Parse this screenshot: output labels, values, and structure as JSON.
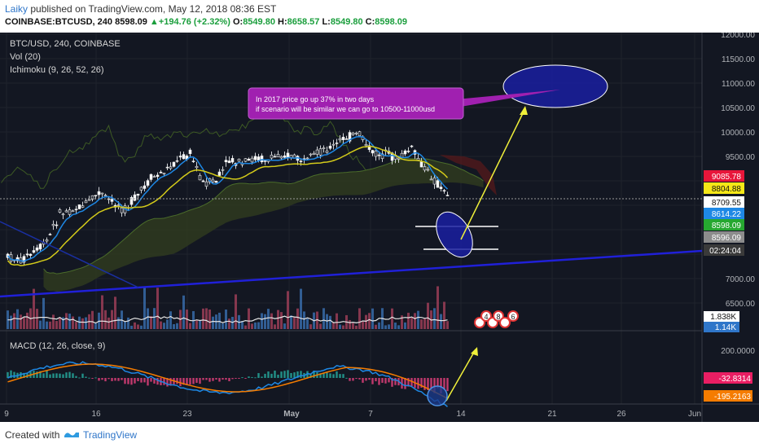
{
  "header": {
    "user": "Laiky",
    "published": "published on TradingView.com, May 12, 2018 08:36 EST",
    "symbol_line": "COINBASE:BTCUSD, 240",
    "last": "8598.09",
    "change_arrow": "▲",
    "change": "+194.76 (+2.32%)",
    "o_label": "O:",
    "o": "8549.80",
    "h_label": "H:",
    "h": "8658.57",
    "l_label": "L:",
    "l": "8549.80",
    "c_label": "C:",
    "c": "8598.09"
  },
  "legend": {
    "title": "BTC/USD, 240, COINBASE",
    "vol": "Vol (20)",
    "ichimoku": "Ichimoku (9, 26, 52, 26)",
    "macd": "MACD (12, 26, close, 9)"
  },
  "annotation": {
    "line1": "In 2017 price go up 37% in two days",
    "line2": "if scenario will be similar we can go to 10500-11000usd"
  },
  "badges": [
    "4",
    "8",
    "6"
  ],
  "footer": {
    "created": "Created with",
    "brand": "TradingView"
  },
  "chart_data": [
    {
      "type": "candlestick",
      "title": "BTC/USD, 240, COINBASE",
      "ylim": [
        6000,
        12000
      ],
      "y_ticks": [
        "12000.00",
        "11500.00",
        "11000.00",
        "10500.00",
        "10000.00",
        "9500.00",
        "7000.00",
        "6500.00"
      ],
      "x_ticks": [
        "9",
        "16",
        "23",
        "May",
        "7",
        "14",
        "21",
        "26",
        "Jun"
      ],
      "price_labels": [
        {
          "value": "9085.78",
          "color": "#e8163a"
        },
        {
          "value": "8804.88",
          "color": "#f6e717"
        },
        {
          "value": "8709.55",
          "color": "#ffffff"
        },
        {
          "value": "8614.22",
          "color": "#1e88e5"
        },
        {
          "value": "8598.09",
          "color": "#26a830"
        },
        {
          "value": "8596.09",
          "color": "#8c8c8c"
        },
        {
          "value": "02:24:04",
          "color": "#3a3a3a"
        }
      ],
      "volume_labels": [
        {
          "value": "1.838K",
          "color": "#ffffff"
        },
        {
          "value": "1.14K",
          "color": "#2f76c9"
        }
      ],
      "path_points": [
        [
          0,
          7220
        ],
        [
          4,
          7150
        ],
        [
          8,
          7300
        ],
        [
          12,
          7550
        ],
        [
          16,
          8150
        ],
        [
          20,
          8250
        ],
        [
          24,
          8350
        ],
        [
          28,
          8600
        ],
        [
          32,
          8400
        ],
        [
          36,
          8250
        ],
        [
          40,
          8550
        ],
        [
          44,
          8900
        ],
        [
          48,
          9050
        ],
        [
          52,
          9300
        ],
        [
          56,
          9450
        ],
        [
          60,
          8800
        ],
        [
          64,
          8850
        ],
        [
          68,
          9300
        ],
        [
          72,
          9200
        ],
        [
          76,
          9350
        ],
        [
          80,
          9300
        ],
        [
          84,
          9450
        ],
        [
          88,
          9350
        ],
        [
          92,
          9250
        ],
        [
          96,
          9500
        ],
        [
          100,
          9600
        ],
        [
          104,
          9800
        ],
        [
          108,
          9850
        ],
        [
          112,
          9450
        ],
        [
          116,
          9400
        ],
        [
          120,
          9350
        ],
        [
          124,
          9550
        ],
        [
          128,
          9100
        ],
        [
          132,
          8800
        ],
        [
          134,
          8600
        ],
        [
          136,
          8598
        ]
      ]
    },
    {
      "type": "line",
      "title": "MACD (12, 26, close, 9)",
      "ylim": [
        -250,
        250
      ],
      "y_ticks": [
        "200.0000"
      ],
      "value_labels": [
        {
          "value": "-32.8314",
          "color": "#e91e63"
        },
        {
          "value": "-195.2163",
          "color": "#f57c00"
        }
      ]
    }
  ],
  "colors": {
    "background": "#131722",
    "up": "#ffffff",
    "down": "#26282e",
    "annotation_bg": "#9c27b0",
    "ellipse": "#1a1f9e"
  }
}
